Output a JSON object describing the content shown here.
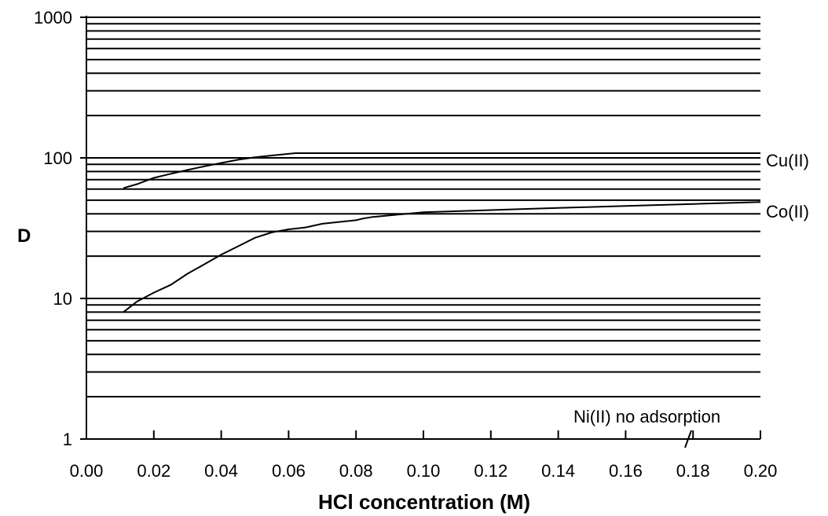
{
  "chart_data": {
    "type": "line",
    "xlabel": "HCl concentration (M)",
    "ylabel": "D",
    "xlim": [
      0,
      0.2
    ],
    "ylim": [
      1,
      1000
    ],
    "yscale": "log",
    "grid": "horizontal log-spaced gridlines",
    "x_ticks": [
      "0.00",
      "0.02",
      "0.04",
      "0.06",
      "0.08",
      "0.10",
      "0.12",
      "0.14",
      "0.16",
      "0.18",
      "0.20"
    ],
    "y_ticks": [
      "1",
      "10",
      "100",
      "1000"
    ],
    "series": [
      {
        "name": "Cu(II)",
        "points": [
          [
            0.011,
            61
          ],
          [
            0.015,
            65
          ],
          [
            0.02,
            72
          ],
          [
            0.025,
            77
          ],
          [
            0.03,
            82
          ],
          [
            0.035,
            87
          ],
          [
            0.04,
            92
          ],
          [
            0.045,
            97
          ],
          [
            0.05,
            101
          ],
          [
            0.055,
            104
          ],
          [
            0.062,
            108
          ],
          [
            0.2,
            108
          ]
        ]
      },
      {
        "name": "Co(II)",
        "points": [
          [
            0.011,
            8
          ],
          [
            0.015,
            9.5
          ],
          [
            0.02,
            11
          ],
          [
            0.025,
            12.5
          ],
          [
            0.03,
            15
          ],
          [
            0.035,
            17.5
          ],
          [
            0.04,
            20.5
          ],
          [
            0.045,
            23.5
          ],
          [
            0.05,
            27
          ],
          [
            0.055,
            29.5
          ],
          [
            0.06,
            31
          ],
          [
            0.065,
            32
          ],
          [
            0.07,
            34
          ],
          [
            0.075,
            35
          ],
          [
            0.08,
            36
          ],
          [
            0.082,
            37
          ],
          [
            0.085,
            38
          ],
          [
            0.09,
            39
          ],
          [
            0.1,
            41
          ],
          [
            0.12,
            42.5
          ],
          [
            0.14,
            44
          ],
          [
            0.16,
            45.5
          ],
          [
            0.18,
            47
          ],
          [
            0.2,
            48.5
          ]
        ]
      }
    ],
    "annotations": [
      "Ni(II) no adsorption"
    ]
  }
}
